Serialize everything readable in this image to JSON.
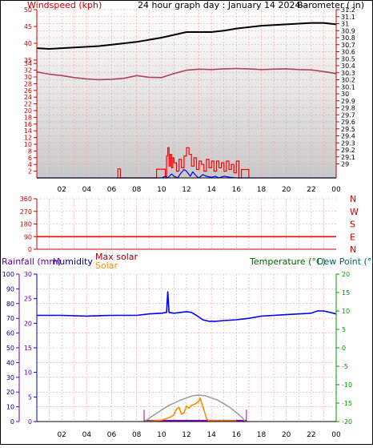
{
  "chart_data": [
    {
      "type": "line",
      "panel": "wind-barometer",
      "title": "24 hour graph day : January 14 2024--",
      "left_label": "Windspeed (kph)",
      "right_label": "Barometer ( in)",
      "x_ticks": [
        "02",
        "04",
        "06",
        "08",
        "10",
        "12",
        "14",
        "16",
        "18",
        "20",
        "22",
        "00"
      ],
      "left_ticks": [
        2,
        4,
        6,
        8,
        10,
        12,
        14,
        16,
        18,
        20,
        22,
        24,
        26,
        28,
        30,
        32,
        34
      ],
      "left_ticks_upper": [
        35,
        40,
        45,
        50
      ],
      "right_ticks": [
        29,
        29.1,
        29.2,
        29.3,
        29.4,
        29.5,
        29.6,
        29.7,
        29.8,
        29.9,
        30,
        30.1,
        30.2,
        30.3,
        30.4,
        30.5,
        30.6,
        30.7,
        30.8,
        30.9,
        31,
        31.1,
        31.2
      ],
      "xlim": [
        0,
        24
      ],
      "wind_ylim": [
        0,
        50
      ],
      "baro_ylim": [
        28.8,
        31.2
      ],
      "series": [
        {
          "kind": "barometer",
          "color": "#000000",
          "x": [
            0,
            1,
            2,
            3,
            4,
            5,
            6,
            7,
            8,
            9,
            10,
            11,
            12,
            13,
            14,
            15,
            16,
            17,
            18,
            19,
            20,
            21,
            22,
            23,
            24
          ],
          "y": [
            30.65,
            30.64,
            30.65,
            30.66,
            30.67,
            30.68,
            30.7,
            30.72,
            30.74,
            30.77,
            30.8,
            30.84,
            30.88,
            30.88,
            30.88,
            30.9,
            30.93,
            30.95,
            30.97,
            30.98,
            30.99,
            31.0,
            31.01,
            31.01,
            30.99
          ]
        },
        {
          "kind": "temperature",
          "color": "#b04060",
          "x": [
            0,
            1,
            2,
            3,
            4,
            5,
            6,
            7,
            8,
            9,
            10,
            11,
            12,
            13,
            14,
            15,
            16,
            17,
            18,
            19,
            20,
            21,
            22,
            23,
            24
          ],
          "y": [
            31.5,
            30.8,
            30.4,
            29.8,
            29.4,
            29.2,
            29.3,
            29.6,
            30.4,
            29.9,
            29.8,
            31.0,
            32.0,
            32.3,
            32.2,
            32.4,
            32.5,
            32.4,
            32.2,
            32.3,
            32.4,
            32.2,
            32.1,
            31.6,
            31.0
          ]
        },
        {
          "kind": "gust",
          "color": "#ff0000",
          "x": [
            6.4,
            6.5,
            6.7,
            9.5,
            9.6,
            10.3,
            10.4,
            10.5,
            10.6,
            10.7,
            10.8,
            10.9,
            11.0,
            11.2,
            11.4,
            11.6,
            11.8,
            12.0,
            12.2,
            12.4,
            12.6,
            12.8,
            13.0,
            13.2,
            13.4,
            13.6,
            13.8,
            14.0,
            14.2,
            14.4,
            14.6,
            14.8,
            15.0,
            15.2,
            15.4,
            15.6,
            15.8,
            16.0,
            16.2,
            16.4,
            17.0
          ],
          "y": [
            0,
            2.7,
            0,
            0,
            2.6,
            0,
            6.5,
            9.0,
            3.5,
            7.0,
            3.0,
            6.0,
            4.5,
            2.0,
            5.5,
            3.0,
            6.5,
            9.0,
            7.0,
            3.5,
            6.0,
            2.5,
            5.0,
            4.0,
            2.0,
            5.5,
            3.0,
            5.0,
            2.0,
            5.0,
            3.0,
            4.5,
            2.0,
            5.0,
            2.5,
            4.0,
            1.5,
            5.0,
            0,
            2.5,
            0
          ]
        },
        {
          "kind": "wind",
          "color": "#0000ff",
          "x": [
            0,
            10.0,
            10.3,
            10.5,
            10.8,
            11.0,
            11.3,
            11.5,
            11.8,
            12.0,
            12.3,
            12.5,
            12.8,
            13.0,
            13.3,
            13.6,
            14.0,
            14.3,
            14.6,
            15.0,
            15.5,
            16.0,
            16.5,
            24
          ],
          "y": [
            0,
            0,
            0.5,
            0,
            1.2,
            0.5,
            0,
            1.2,
            2.5,
            2.0,
            0.5,
            1.8,
            0.5,
            0,
            1.0,
            0.5,
            0.2,
            0.5,
            0,
            0.5,
            0.2,
            0,
            0,
            0
          ]
        }
      ]
    },
    {
      "type": "line",
      "panel": "wind-direction",
      "left_ticks": [
        0,
        90,
        180,
        270,
        360
      ],
      "right_labels": [
        "N",
        "W",
        "S",
        "E",
        "N"
      ],
      "xlim": [
        0,
        24
      ],
      "ylim": [
        0,
        360
      ],
      "series": [
        {
          "kind": "direction",
          "color": "#ff0000",
          "x": [
            0,
            24
          ],
          "y": [
            90,
            90
          ]
        }
      ]
    },
    {
      "type": "line",
      "panel": "rain-humidity-solar-temp",
      "labels": {
        "rainfall": "Rainfall (mm)",
        "humidity": "Humidity",
        "max_solar": "Max solar",
        "solar": "Solar",
        "temperature": "Temperature (°C)",
        "dew_point": "Dew Point (°C)"
      },
      "x_ticks": [
        "02",
        "04",
        "06",
        "08",
        "10",
        "12",
        "14",
        "16",
        "18",
        "20",
        "22",
        "00"
      ],
      "humidity_ticks": [
        0,
        10,
        20,
        30,
        40,
        50,
        60,
        70,
        80,
        90,
        100
      ],
      "rain_ticks": [
        0,
        5,
        10,
        15,
        20,
        25,
        30
      ],
      "temp_ticks": [
        -20,
        -15,
        -10,
        -5,
        0,
        5,
        10,
        15,
        20
      ],
      "xlim": [
        0,
        24
      ],
      "humidity_ylim": [
        0,
        100
      ],
      "temp_ylim": [
        -20,
        20
      ],
      "series": [
        {
          "kind": "humidity",
          "color": "#0000ff",
          "x": [
            0,
            2,
            4,
            6,
            8,
            9,
            10,
            10.4,
            10.5,
            10.6,
            11,
            12,
            12.4,
            12.8,
            13.3,
            13.8,
            14.3,
            15,
            16,
            17,
            18,
            19,
            20,
            21,
            22,
            22.5,
            23,
            23.5,
            24
          ],
          "y": [
            72,
            72,
            71.5,
            72,
            72,
            73,
            73.5,
            74,
            88,
            74,
            73.5,
            74.5,
            74,
            72,
            69,
            68,
            68,
            68.5,
            69,
            70,
            71.5,
            72,
            72.5,
            73,
            73.5,
            75,
            75,
            74,
            73
          ]
        },
        {
          "kind": "max-solar",
          "color": "#a0a0a0",
          "x": [
            8.6,
            9.5,
            10.5,
            11.5,
            12.5,
            13.0,
            13.5,
            14.5,
            15.5,
            16.5,
            16.7
          ],
          "y": [
            0,
            5,
            10.5,
            14.5,
            17.5,
            18,
            17.5,
            14.5,
            9.5,
            2.5,
            0
          ]
        },
        {
          "kind": "solar",
          "color": "#ff8c00",
          "x": [
            8.6,
            9.4,
            10.0,
            10.4,
            10.8,
            11.0,
            11.2,
            11.4,
            11.6,
            11.8,
            12.0,
            12.2,
            12.4,
            12.6,
            12.8,
            13.0,
            13.1,
            13.2,
            13.4,
            13.6,
            13.8,
            14.2,
            15.0,
            15.5,
            16.0
          ],
          "y": [
            0,
            0.5,
            1.0,
            2.0,
            3.5,
            4.5,
            8.5,
            9.5,
            5.0,
            6.0,
            10.5,
            9.0,
            11.0,
            11.5,
            12.5,
            14.0,
            16.0,
            13.0,
            8.0,
            2.0,
            0.5,
            0.5,
            0.5,
            0.5,
            0.5
          ]
        }
      ]
    }
  ]
}
